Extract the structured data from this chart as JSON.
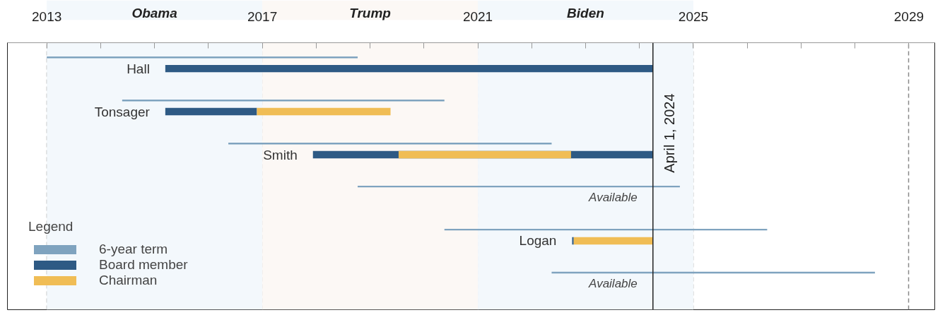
{
  "chart_data": {
    "type": "bar",
    "orientation": "horizontal",
    "legend_title": "Legend",
    "categories": [
      "Hall",
      "Tonsager",
      "Smith",
      "Available",
      "Logan",
      "Available"
    ],
    "series": [
      {
        "name": "6-year term",
        "color": "#7fa3bf",
        "base": [
          2013.0,
          2014.4,
          2016.37,
          2018.77,
          2020.38,
          2022.37
        ],
        "values": [
          5.77,
          5.98,
          6.0,
          5.98,
          5.99,
          6.0
        ]
      },
      {
        "name": "Board member",
        "color": "#2e5a84",
        "base": [
          2015.2,
          2015.2,
          2017.94,
          null,
          2022.75,
          null
        ],
        "values": [
          9.05,
          1.7,
          6.31,
          null,
          0.03,
          null
        ]
      },
      {
        "name": "Chairman",
        "color": "#f0bd55",
        "base": [
          null,
          2016.9,
          2019.53,
          null,
          2022.78,
          null
        ],
        "values": [
          null,
          2.48,
          3.2,
          null,
          1.47,
          null
        ]
      }
    ],
    "xlim": [
      2012.27,
      2029.48
    ],
    "xticks": [
      2013,
      {
        "value": 2014,
        "label": null
      },
      {
        "value": 2015,
        "label": null
      },
      {
        "value": 2016,
        "label": null
      },
      2017,
      {
        "value": 2018,
        "label": null
      },
      {
        "value": 2019,
        "label": null
      },
      {
        "value": 2020,
        "label": null
      },
      2021,
      {
        "value": 2022,
        "label": null
      },
      {
        "value": 2023,
        "label": null
      },
      {
        "value": 2024,
        "label": null
      },
      2025,
      {
        "value": 2026,
        "label": null
      },
      {
        "value": 2027,
        "label": null
      },
      {
        "value": 2028,
        "label": null
      },
      2029
    ],
    "bands": [
      {
        "axis": "x",
        "from": 2013,
        "to": 2017,
        "label": "Obama",
        "color": "#f3f8fc"
      },
      {
        "axis": "x",
        "from": 2017,
        "to": 2021,
        "label": "Trump",
        "color": "#fcf8f5"
      },
      {
        "axis": "x",
        "from": 2021,
        "to": 2025,
        "label": "Biden",
        "color": "#f3f8fc"
      }
    ],
    "ref_lines": [
      {
        "axis": "x",
        "value": 2024.25,
        "label": "April 1, 2024",
        "color": "#222222",
        "line_style": "solid"
      }
    ],
    "grid": "x",
    "legend": "bottom left"
  }
}
